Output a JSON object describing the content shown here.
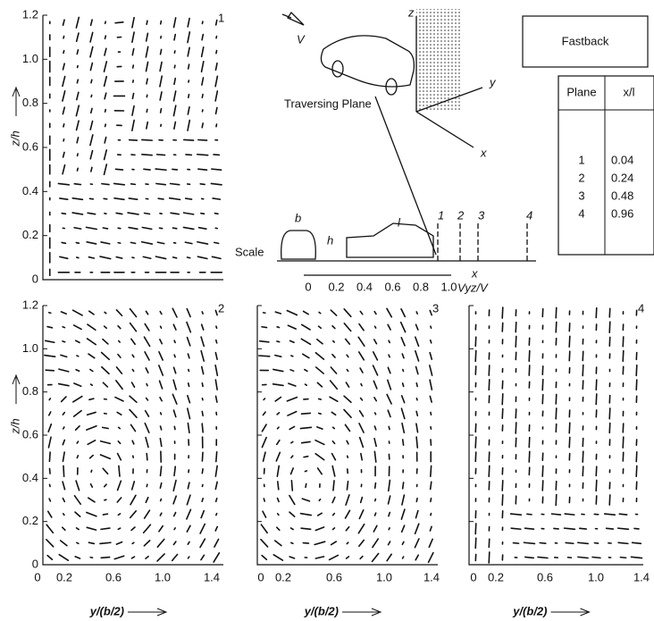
{
  "figure_label": "Fastback",
  "panels": [
    {
      "number": "1",
      "y_ticks": [
        "1.2",
        "1.0",
        "0.8",
        "0.6",
        "0.4",
        "0.2",
        "0"
      ],
      "y_label": "z/h"
    },
    {
      "number": "2",
      "y_ticks": [
        "1.2",
        "1.0",
        "0.8",
        "0.6",
        "0.4",
        "0.2",
        "0"
      ],
      "y_label": "z/h",
      "x_ticks": [
        "0",
        "0.2",
        "0.6",
        "1.0",
        "1.4"
      ],
      "x_label": "y/(b/2)"
    },
    {
      "number": "3",
      "x_ticks": [
        "0",
        "0.2",
        "0.6",
        "1.0",
        "1.4"
      ],
      "x_label": "y/(b/2)"
    },
    {
      "number": "4",
      "x_ticks": [
        "0",
        "0.2",
        "0.6",
        "1.0",
        "1.4"
      ],
      "x_label": "y/(b/2)"
    }
  ],
  "sketch": {
    "velocity": "V",
    "axis_z": "z",
    "axis_y": "y",
    "axis_x": "x",
    "traversing_plane": "Traversing Plane",
    "width": "b",
    "height": "h",
    "length": "l",
    "stations": [
      "1",
      "2",
      "3",
      "4"
    ],
    "ground_x": "x"
  },
  "scale": {
    "label": "Scale",
    "ticks": [
      "0",
      "0.2",
      "0.4",
      "0.6",
      "0.8",
      "1.0"
    ],
    "unit": "Vyz/V"
  },
  "table": {
    "header": [
      "Plane",
      "x/l"
    ],
    "rows": [
      [
        "1",
        "0.04"
      ],
      [
        "2",
        "0.24"
      ],
      [
        "3",
        "0.48"
      ],
      [
        "4",
        "0.96"
      ]
    ]
  }
}
